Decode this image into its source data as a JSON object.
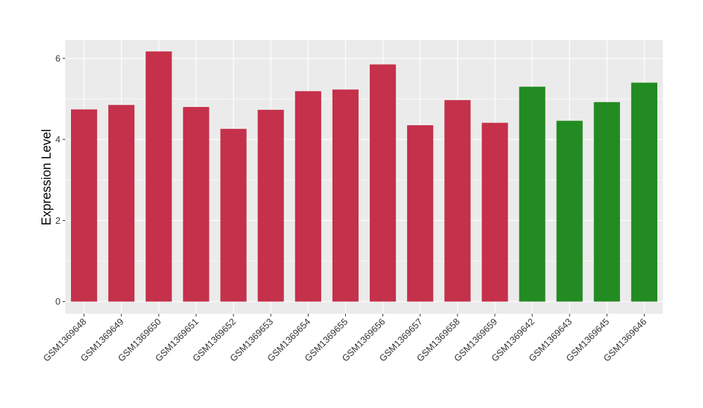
{
  "chart_data": {
    "type": "bar",
    "title": "",
    "xlabel": "",
    "ylabel": "Expression Level",
    "ylim": [
      -0.3,
      6.45
    ],
    "yticks": [
      0,
      2,
      4,
      6
    ],
    "grid": true,
    "categories": [
      "GSM1369648",
      "GSM1369649",
      "GSM1369650",
      "GSM1369651",
      "GSM1369652",
      "GSM1369653",
      "GSM1369654",
      "GSM1369655",
      "GSM1369656",
      "GSM1369657",
      "GSM1369658",
      "GSM1369659",
      "GSM1369642",
      "GSM1369643",
      "GSM1369645",
      "GSM1369646"
    ],
    "values": [
      4.74,
      4.85,
      6.17,
      4.8,
      4.26,
      4.73,
      5.19,
      5.23,
      5.85,
      4.35,
      4.97,
      4.41,
      5.3,
      4.46,
      4.92,
      5.4
    ],
    "groups": [
      "a",
      "a",
      "a",
      "a",
      "a",
      "a",
      "a",
      "a",
      "a",
      "a",
      "a",
      "a",
      "b",
      "b",
      "b",
      "b"
    ],
    "colors": {
      "a": "#C5304A",
      "b": "#228B22"
    },
    "panel_background": "#EBEBEB",
    "grid_color": "#FFFFFF"
  }
}
